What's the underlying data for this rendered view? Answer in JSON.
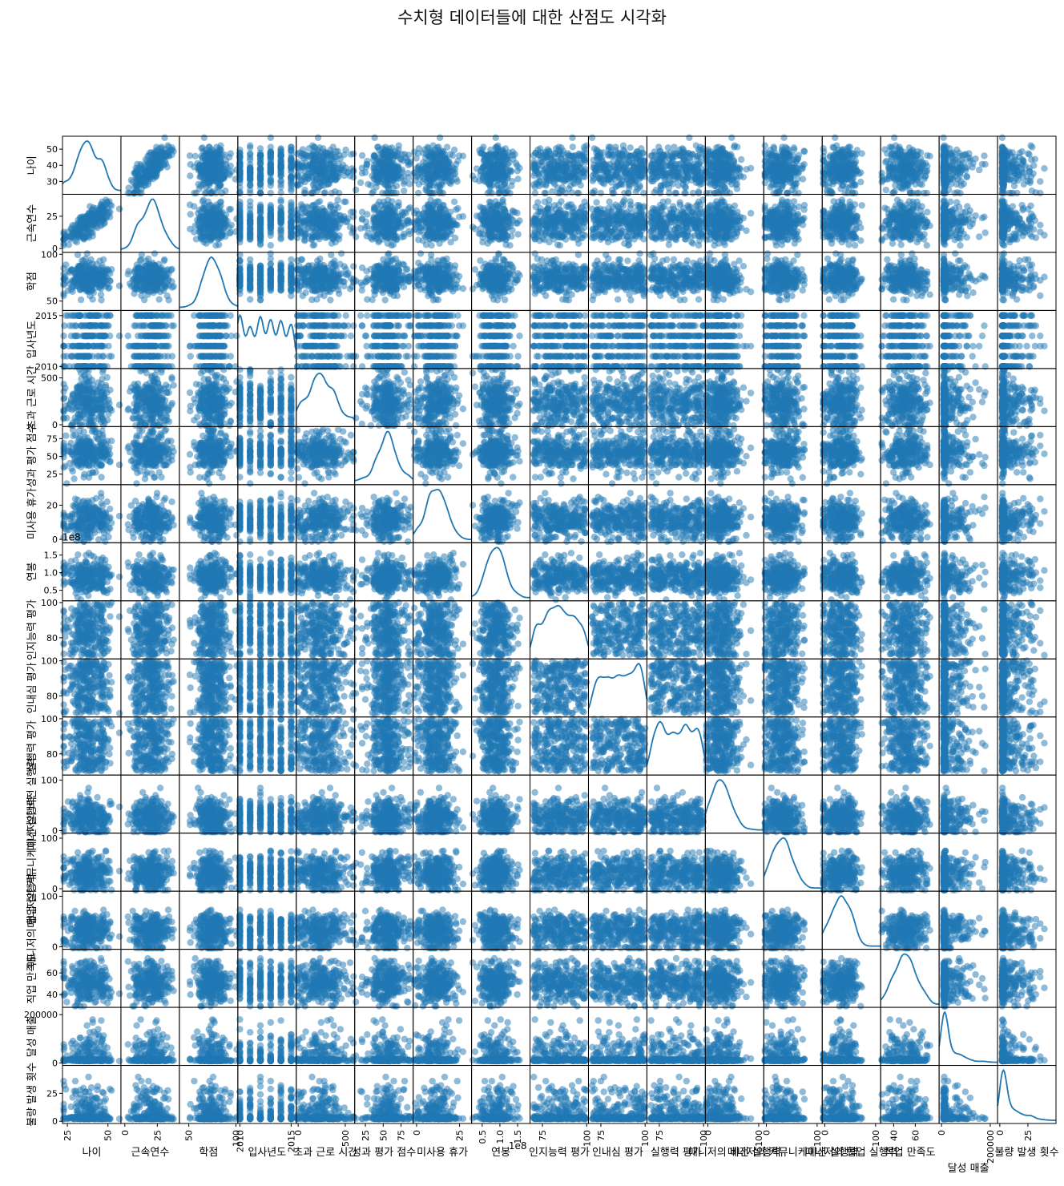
{
  "chart_data": {
    "type": "scatter_matrix",
    "title": "수치형 데이터들에 대한 산점도 시각화",
    "color": "#1f77b4",
    "variables": [
      {
        "name": "나이",
        "ticks": [
          {
            "v": 30,
            "l": "30"
          },
          {
            "v": 40,
            "l": "40"
          },
          {
            "v": 50,
            "l": "50"
          }
        ],
        "xticks": [
          {
            "v": 25,
            "l": "25"
          },
          {
            "v": 50,
            "l": "50"
          }
        ],
        "range": [
          22,
          58
        ],
        "dist": "normal",
        "center": 38,
        "spread": 7
      },
      {
        "name": "근속연수",
        "ticks": [
          {
            "v": 0,
            "l": "0"
          },
          {
            "v": 25,
            "l": "25"
          }
        ],
        "xticks": [
          {
            "v": 0,
            "l": "0"
          },
          {
            "v": 25,
            "l": "25"
          }
        ],
        "range": [
          -3,
          42
        ],
        "dist": "normal",
        "center": 20,
        "spread": 7
      },
      {
        "name": "학점",
        "ticks": [
          {
            "v": 50,
            "l": "50"
          },
          {
            "v": 100,
            "l": "100"
          }
        ],
        "xticks": [
          {
            "v": 50,
            "l": "50"
          },
          {
            "v": 100,
            "l": "100"
          }
        ],
        "range": [
          40,
          102
        ],
        "dist": "normal",
        "center": 75,
        "spread": 9
      },
      {
        "name": "입사년도",
        "ticks": [
          {
            "v": 2010,
            "l": "2010"
          },
          {
            "v": 2015,
            "l": "2015"
          }
        ],
        "xticks": [
          {
            "v": 2010,
            "l": "2010"
          },
          {
            "v": 2015,
            "l": "2015"
          }
        ],
        "range": [
          2009.8,
          2015.5
        ],
        "dist": "discrete",
        "levels": [
          2010,
          2011,
          2012,
          2013,
          2014,
          2015
        ]
      },
      {
        "name": "초과 근로 시간",
        "ticks": [
          {
            "v": 0,
            "l": "0"
          },
          {
            "v": 500,
            "l": "500"
          }
        ],
        "xticks": [
          {
            "v": 0,
            "l": "0"
          },
          {
            "v": 500,
            "l": "500"
          }
        ],
        "range": [
          -20,
          600
        ],
        "dist": "normal",
        "center": 230,
        "spread": 140
      },
      {
        "name": "성과 평가 점수",
        "ticks": [
          {
            "v": 25,
            "l": "25"
          },
          {
            "v": 50,
            "l": "50"
          },
          {
            "v": 75,
            "l": "75"
          }
        ],
        "xticks": [
          {
            "v": 25,
            "l": "25"
          },
          {
            "v": 50,
            "l": "50"
          },
          {
            "v": 75,
            "l": "75"
          }
        ],
        "range": [
          10,
          92
        ],
        "dist": "normal",
        "center": 55,
        "spread": 13
      },
      {
        "name": "미사용 휴가",
        "ticks": [
          {
            "v": 0,
            "l": "0"
          },
          {
            "v": 20,
            "l": "20"
          }
        ],
        "xticks": [
          {
            "v": 0,
            "l": "0"
          },
          {
            "v": 25,
            "l": "25"
          }
        ],
        "range": [
          -2,
          32
        ],
        "dist": "normal",
        "center": 12,
        "spread": 6
      },
      {
        "name": "연봉",
        "ticks": [
          {
            "v": 0.5,
            "l": "0.5"
          },
          {
            "v": 1.0,
            "l": "1.0"
          },
          {
            "v": 1.5,
            "l": "1.5"
          }
        ],
        "xticks": [
          {
            "v": 0.5,
            "l": "0.5"
          },
          {
            "v": 1.0,
            "l": "1.0"
          },
          {
            "v": 1.5,
            "l": "1.5"
          }
        ],
        "range": [
          0.2,
          1.85
        ],
        "dist": "normal",
        "center": 0.9,
        "spread": 0.25,
        "offset": "1e8"
      },
      {
        "name": "인지능력 평가",
        "ticks": [
          {
            "v": 80,
            "l": "80"
          },
          {
            "v": 100,
            "l": "100"
          }
        ],
        "xticks": [
          {
            "v": 75,
            "l": "75"
          },
          {
            "v": 100,
            "l": "100"
          }
        ],
        "range": [
          68,
          101
        ],
        "dist": "uniform"
      },
      {
        "name": "인내심 평가",
        "ticks": [
          {
            "v": 80,
            "l": "80"
          },
          {
            "v": 100,
            "l": "100"
          }
        ],
        "xticks": [
          {
            "v": 75,
            "l": "75"
          },
          {
            "v": 100,
            "l": "100"
          }
        ],
        "range": [
          68,
          101
        ],
        "dist": "uniform"
      },
      {
        "name": "실행력 평가",
        "ticks": [
          {
            "v": 80,
            "l": "80"
          },
          {
            "v": 100,
            "l": "100"
          }
        ],
        "xticks": [
          {
            "v": 75,
            "l": "75"
          },
          {
            "v": 100,
            "l": "100"
          }
        ],
        "range": [
          68,
          101
        ],
        "dist": "uniform"
      },
      {
        "name": "매니저의 비전 실행력",
        "ticks": [
          {
            "v": 0,
            "l": "0"
          },
          {
            "v": 100,
            "l": "100"
          }
        ],
        "xticks": [
          {
            "v": 0,
            "l": "0"
          },
          {
            "v": 100,
            "l": "100"
          }
        ],
        "range": [
          -5,
          110
        ],
        "dist": "normal",
        "center": 25,
        "spread": 18
      },
      {
        "name": "매니저의 커뮤니케이션 실행력",
        "ticks": [
          {
            "v": 0,
            "l": "0"
          },
          {
            "v": 100,
            "l": "100"
          }
        ],
        "xticks": [
          {
            "v": 0,
            "l": "0"
          },
          {
            "v": 100,
            "l": "100"
          }
        ],
        "range": [
          -5,
          110
        ],
        "dist": "normal",
        "center": 30,
        "spread": 20
      },
      {
        "name": "매니저의 협업 실행력",
        "ticks": [
          {
            "v": 0,
            "l": "0"
          },
          {
            "v": 100,
            "l": "100"
          }
        ],
        "xticks": [
          {
            "v": 0,
            "l": "0"
          },
          {
            "v": 100,
            "l": "100"
          }
        ],
        "range": [
          -5,
          110
        ],
        "dist": "normal",
        "center": 30,
        "spread": 18
      },
      {
        "name": "직업 만족도",
        "ticks": [
          {
            "v": 40,
            "l": "40"
          },
          {
            "v": 60,
            "l": "60"
          }
        ],
        "xticks": [
          {
            "v": 40,
            "l": "40"
          },
          {
            "v": 60,
            "l": "60"
          }
        ],
        "range": [
          28,
          82
        ],
        "dist": "normal",
        "center": 50,
        "spread": 9
      },
      {
        "name": "달성 매출",
        "ticks": [
          {
            "v": 0,
            "l": "0"
          },
          {
            "v": 200000,
            "l": "200000"
          }
        ],
        "xticks": [
          {
            "v": 0,
            "l": "0"
          },
          {
            "v": 200000,
            "l": "200000"
          }
        ],
        "range": [
          -10000,
          230000
        ],
        "dist": "skew",
        "center": 8000,
        "spread": 60000
      },
      {
        "name": "불량 발생 횟수",
        "ticks": [
          {
            "v": 0,
            "l": "0"
          },
          {
            "v": 25,
            "l": "25"
          }
        ],
        "xticks": [
          {
            "v": 0,
            "l": "0"
          },
          {
            "v": 25,
            "l": "25"
          }
        ],
        "range": [
          -2,
          50
        ],
        "dist": "skew",
        "center": 2,
        "spread": 14
      }
    ]
  }
}
